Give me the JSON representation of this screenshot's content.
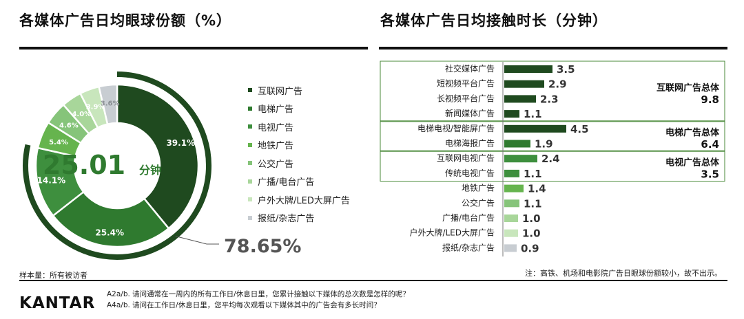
{
  "left_title": "各媒体广告日均眼球份额（%）",
  "right_title": "各媒体广告日均接触时长（分钟）",
  "center_value": "25.01",
  "center_unit": "分钟",
  "outer_value": "78.65%",
  "sample_note": "样本量：所有被访者",
  "footnote": "注：高铁、机场和电影院广告日眼球份额较小，故不出示。",
  "questions": [
    "A2a/b. 请问通常在一周内的所有工作日/休息日里，您累计接触以下媒体的总次数是怎样的呢？",
    "A4a/b. 请问在工作日/休息日里，您平均每次观看以下媒体其中的广告会有多长时间？"
  ],
  "logo": "KANTAR",
  "colors": {
    "dark_green": "#1f4a1f",
    "mid_green": "#2f7a2f",
    "green": "#3e8f3e",
    "light_green": "#66b44e",
    "pale_green": "#86c47a",
    "paler_green": "#a8d69a",
    "palest_green": "#c8e6bc",
    "gray": "#c8cdd2",
    "box_border": "#4a8a3a"
  },
  "chart_data": [
    {
      "type": "pie",
      "title": "各媒体广告日均眼球份额（%）",
      "slices": [
        {
          "label": "互联网广告",
          "value": 39.1,
          "label_text": "39.1%",
          "color": "#1f4a1f"
        },
        {
          "label": "电梯广告",
          "value": 25.4,
          "label_text": "25.4%",
          "color": "#2f7a2f"
        },
        {
          "label": "电视广告",
          "value": 14.1,
          "label_text": "14.1%",
          "color": "#3e8f3e"
        },
        {
          "label": "地铁广告",
          "value": 5.4,
          "label_text": "5.4%",
          "color": "#66b44e"
        },
        {
          "label": "公交广告",
          "value": 4.6,
          "label_text": "4.6%",
          "color": "#86c47a"
        },
        {
          "label": "广播/电台广告",
          "value": 4.0,
          "label_text": "4.0%",
          "color": "#a8d69a"
        },
        {
          "label": "户外大牌/LED大屏广告",
          "value": 3.9,
          "label_text": "3.9%",
          "color": "#c8e6bc"
        },
        {
          "label": "报纸/杂志广告",
          "value": 3.6,
          "label_text": "3.6%",
          "color": "#c8cdd2"
        }
      ],
      "outer_arc_value": 78.65
    },
    {
      "type": "bar",
      "orientation": "horizontal",
      "title": "各媒体广告日均接触时长（分钟）",
      "categories": [
        "社交媒体广告",
        "短视频平台广告",
        "长视频平台广告",
        "新闻媒体广告",
        "电梯电视/智能屏广告",
        "电梯海报广告",
        "互联网电视广告",
        "传统电视广告",
        "地铁广告",
        "公交广告",
        "广播/电台广告",
        "户外大牌/LED大屏广告",
        "报纸/杂志广告"
      ],
      "values": [
        3.5,
        2.9,
        2.3,
        1.1,
        4.5,
        1.9,
        2.4,
        1.1,
        1.4,
        1.1,
        1.0,
        1.0,
        0.9
      ],
      "value_labels": [
        "3.5",
        "2.9",
        "2.3",
        "1.1",
        "4.5",
        "1.9",
        "2.4",
        "1.1",
        "1.4",
        "1.1",
        "1.0",
        "1.0",
        "0.9"
      ],
      "colors": [
        "#1f4a1f",
        "#1f4a1f",
        "#1f4a1f",
        "#1f4a1f",
        "#1f4a1f",
        "#2f7a2f",
        "#3e8f3e",
        "#3e8f3e",
        "#66b44e",
        "#86c47a",
        "#a8d69a",
        "#c8e6bc",
        "#c8cdd2"
      ],
      "groups": [
        {
          "label": "互联网广告总体",
          "total": "9.8",
          "rows": [
            0,
            1,
            2,
            3
          ]
        },
        {
          "label": "电梯广告总体",
          "total": "6.4",
          "rows": [
            4,
            5
          ]
        },
        {
          "label": "电视广告总体",
          "total": "3.5",
          "rows": [
            6,
            7
          ]
        }
      ],
      "xlim": [
        0,
        4.5
      ]
    }
  ]
}
